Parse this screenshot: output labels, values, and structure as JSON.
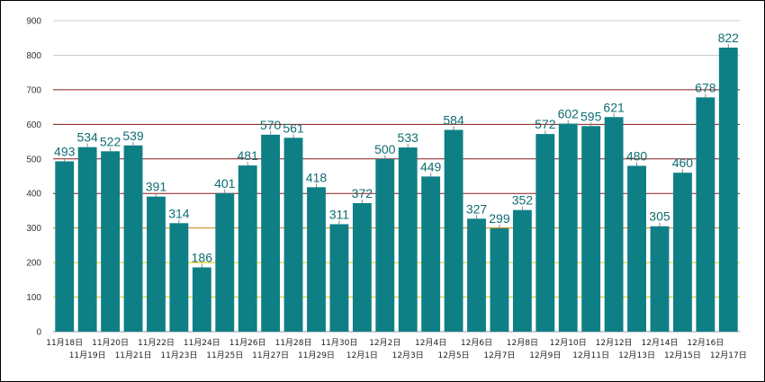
{
  "chart_data": {
    "type": "bar",
    "categories": [
      "11月18日",
      "11月19日",
      "11月20日",
      "11月21日",
      "11月22日",
      "11月23日",
      "11月24日",
      "11月25日",
      "11月26日",
      "11月27日",
      "11月28日",
      "11月29日",
      "11月30日",
      "12月1日",
      "12月2日",
      "12月3日",
      "12月4日",
      "12月5日",
      "12月6日",
      "12月7日",
      "12月8日",
      "12月9日",
      "12月10日",
      "12月11日",
      "12月12日",
      "12月13日",
      "12月14日",
      "12月15日",
      "12月16日",
      "12月17日"
    ],
    "values": [
      493,
      534,
      522,
      539,
      391,
      314,
      186,
      401,
      481,
      570,
      561,
      418,
      311,
      372,
      500,
      533,
      449,
      584,
      327,
      299,
      352,
      572,
      602,
      595,
      621,
      480,
      305,
      460,
      678,
      822
    ],
    "title": "",
    "xlabel": "",
    "ylabel": "",
    "ylim": [
      0,
      900
    ],
    "yticks": [
      0,
      100,
      200,
      300,
      400,
      500,
      600,
      700,
      800,
      900
    ],
    "grid": true,
    "bar_color": "#0f7f86",
    "label_color": "#0f6d72",
    "gridline_colors": {
      "0": "#cccccc",
      "100": "#e0c800",
      "200": "#e0c800",
      "300": "#c8860a",
      "400": "#8b1a1a",
      "500": "#8b1a1a",
      "600": "#8b1a1a",
      "700": "#8b1a1a",
      "800": "#cccccc",
      "900": "#cccccc"
    }
  }
}
